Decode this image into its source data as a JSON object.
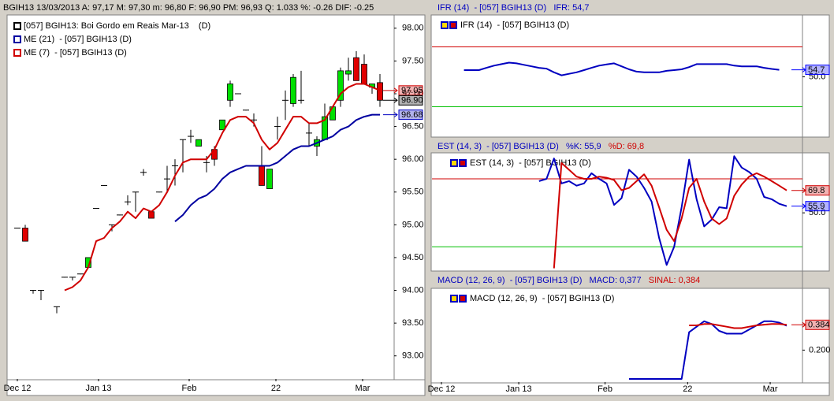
{
  "chart_data": [
    {
      "type": "candlestick",
      "title": "BGIH13   13/03/2013  A: 97,17   M: 97,30   m: 96,80   F: 96,90   PM: 96,93   Q: 1.033   %: -0.26  DIF: -0.25",
      "legend": [
        {
          "name": "[057] BGIH13: Boi Gordo em Reais Mar-13    (D)",
          "color": "#000000"
        },
        {
          "name": "ME (21)  - [057] BGIH13 (D)",
          "color": "#0000a0"
        },
        {
          "name": "ME (7)  - [057] BGIH13 (D)",
          "color": "#d00000"
        }
      ],
      "up_color": "#00e000",
      "down_color": "#e00000",
      "open": [
        94.95,
        94.95,
        94.0,
        94.0,
        null,
        93.75,
        94.2,
        94.2,
        94.25,
        94.35,
        95.25,
        95.6,
        95.0,
        95.15,
        95.35,
        95.5,
        95.8,
        95.2,
        95.5,
        95.7,
        95.9,
        96.3,
        96.35,
        96.2,
        95.95,
        96.15,
        96.45,
        96.9,
        97.0,
        96.75,
        96.6,
        95.9,
        95.55,
        96.5,
        96.9,
        96.85,
        96.9,
        96.4,
        96.2,
        96.3,
        96.6,
        96.9,
        97.3,
        97.55,
        97.45,
        97.1,
        97.17
      ],
      "high": [
        94.95,
        95.0,
        94.0,
        94.0,
        null,
        93.75,
        94.2,
        94.2,
        94.25,
        94.5,
        95.25,
        95.6,
        95.0,
        95.15,
        95.45,
        95.5,
        95.85,
        95.2,
        95.5,
        95.9,
        96.0,
        96.3,
        96.45,
        96.3,
        96.05,
        96.2,
        96.6,
        97.2,
        97.0,
        96.75,
        96.7,
        96.2,
        95.85,
        96.65,
        97.05,
        97.3,
        97.35,
        96.55,
        96.35,
        96.85,
        96.8,
        97.4,
        97.55,
        97.65,
        97.6,
        97.15,
        97.3
      ],
      "low": [
        94.95,
        94.75,
        93.95,
        93.85,
        null,
        93.65,
        94.2,
        94.15,
        94.25,
        94.35,
        95.25,
        95.6,
        94.9,
        95.15,
        95.3,
        95.2,
        95.75,
        95.1,
        95.5,
        95.5,
        95.6,
        95.8,
        96.25,
        96.2,
        95.8,
        95.9,
        96.45,
        96.8,
        97.0,
        96.75,
        96.5,
        95.6,
        95.55,
        96.3,
        96.6,
        96.8,
        96.85,
        96.2,
        96.05,
        96.3,
        96.6,
        96.8,
        97.2,
        97.2,
        97.15,
        97.0,
        96.8
      ],
      "close": [
        94.95,
        94.75,
        94.0,
        94.0,
        null,
        93.75,
        94.2,
        94.2,
        94.25,
        94.5,
        95.25,
        95.6,
        95.0,
        95.15,
        95.35,
        95.5,
        95.8,
        95.1,
        95.5,
        95.7,
        95.9,
        96.3,
        96.35,
        96.3,
        95.95,
        96.0,
        96.6,
        97.15,
        97.0,
        96.75,
        96.6,
        95.6,
        95.85,
        96.5,
        96.9,
        97.25,
        96.9,
        96.4,
        96.3,
        96.65,
        96.8,
        97.35,
        97.35,
        97.2,
        97.15,
        97.15,
        96.9
      ],
      "series": [
        {
          "color": "#0000a0",
          "values": [
            null,
            null,
            null,
            null,
            null,
            null,
            null,
            null,
            null,
            null,
            null,
            null,
            null,
            null,
            null,
            null,
            null,
            null,
            null,
            null,
            95.05,
            95.15,
            95.3,
            95.4,
            95.45,
            95.55,
            95.7,
            95.8,
            95.85,
            95.9,
            95.9,
            95.9,
            95.9,
            95.95,
            96.05,
            96.15,
            96.2,
            96.2,
            96.25,
            96.3,
            96.35,
            96.45,
            96.5,
            96.6,
            96.65,
            96.68,
            96.68
          ]
        },
        {
          "color": "#d00000",
          "values": [
            null,
            null,
            null,
            null,
            null,
            null,
            94.0,
            94.05,
            94.15,
            94.35,
            94.75,
            94.8,
            94.95,
            95.05,
            95.2,
            95.1,
            95.25,
            95.2,
            95.3,
            95.5,
            95.75,
            95.95,
            96.0,
            96.0,
            96.0,
            96.15,
            96.4,
            96.6,
            96.65,
            96.65,
            96.55,
            96.3,
            96.15,
            96.25,
            96.45,
            96.65,
            96.65,
            96.55,
            96.55,
            96.6,
            96.8,
            97.0,
            97.1,
            97.15,
            97.15,
            97.1,
            97.05
          ]
        }
      ],
      "tags": [
        {
          "value": 97.05,
          "label": "97.05",
          "color": "#d00000"
        },
        {
          "value": 96.9,
          "label": "96.90",
          "color": "#000000"
        },
        {
          "value": 96.68,
          "label": "96.68",
          "color": "#0000c0"
        }
      ],
      "xlim": [
        -1.2,
        47.8
      ],
      "ylim": [
        92.66,
        98.19
      ],
      "xticks": [
        {
          "value": 0,
          "label": "Dec 12"
        },
        {
          "value": 10.3,
          "label": "Jan 13"
        },
        {
          "value": 21.8,
          "label": "Feb"
        },
        {
          "value": 32.8,
          "label": "22"
        },
        {
          "value": 43.8,
          "label": "Mar"
        }
      ],
      "yticks": [
        {
          "value": 93,
          "label": "93.00"
        },
        {
          "value": 93.5,
          "label": "93.50"
        },
        {
          "value": 94,
          "label": "94.00"
        },
        {
          "value": 94.5,
          "label": "94.50"
        },
        {
          "value": 95,
          "label": "95.00"
        },
        {
          "value": 95.5,
          "label": "95.50"
        },
        {
          "value": 96,
          "label": "96.00"
        },
        {
          "value": 96.5,
          "label": "96.50"
        },
        {
          "value": 97,
          "label": "97.00"
        },
        {
          "value": 97.5,
          "label": "97.50"
        },
        {
          "value": 98,
          "label": "98.00"
        }
      ]
    },
    {
      "type": "line",
      "title_parts": [
        {
          "text": "IFR (14)  - [057] BGIH13 (D)   IFR: 54,7",
          "color": "#0000c0"
        }
      ],
      "legend": [
        {
          "name": "IFR (14)  - [057] BGIH13 (D)",
          "color": "#0000c0"
        }
      ],
      "series": [
        {
          "color": "#0000c0",
          "values": [
            null,
            null,
            null,
            54.5,
            54.5,
            54.5,
            56,
            57.5,
            58.5,
            59.5,
            59,
            58,
            57,
            56,
            55.5,
            53,
            51,
            52,
            53,
            54.5,
            56,
            57.5,
            58.3,
            59,
            57,
            55,
            53.5,
            53,
            53,
            53,
            54,
            54.5,
            55,
            56.5,
            58.5,
            58.5,
            58.5,
            58.5,
            58.5,
            57.5,
            57,
            57,
            57,
            56,
            55.3,
            54.7,
            null
          ]
        }
      ],
      "levels": [
        {
          "value": 70,
          "color": "#d00000"
        },
        {
          "value": 30,
          "color": "#00c000"
        }
      ],
      "tags": [
        {
          "value": 54.7,
          "label": "54.7",
          "color": "#0000ff"
        }
      ],
      "xlim": [
        -1.26,
        48.1
      ],
      "ylim": [
        10.8,
        90.8
      ],
      "yticks": [
        {
          "value": 50,
          "label": "50.0"
        }
      ]
    },
    {
      "type": "line",
      "title_parts": [
        {
          "text": "EST (14, 3)  - [057] BGIH13 (D)   %K: 55,9",
          "color": "#0000c0"
        },
        {
          "text": "   %D: 69,8",
          "color": "#d00000"
        }
      ],
      "legend": [
        {
          "name": "EST (14, 3)  - [057] BGIH13 (D)",
          "color": "#0000c0"
        }
      ],
      "series": [
        {
          "color": "#0000c0",
          "values": [
            null,
            null,
            null,
            null,
            null,
            null,
            null,
            null,
            null,
            null,
            null,
            null,
            null,
            78,
            80,
            98,
            76,
            78,
            74,
            76,
            85,
            80,
            76,
            57,
            63,
            88,
            82,
            72,
            60,
            28,
            4,
            20,
            55,
            97,
            62,
            38,
            44,
            55,
            54,
            100,
            90,
            86,
            80,
            64,
            62,
            58,
            55.9
          ]
        },
        {
          "color": "#d00000",
          "values": [
            null,
            null,
            null,
            null,
            null,
            null,
            null,
            null,
            null,
            null,
            null,
            null,
            null,
            null,
            null,
            1,
            94,
            88,
            82,
            80,
            80,
            82,
            81,
            79,
            70,
            72,
            78,
            84,
            74,
            55,
            35,
            25,
            45,
            72,
            80,
            60,
            45,
            40,
            45,
            65,
            75,
            82,
            85,
            82,
            78,
            74,
            69.8
          ]
        }
      ],
      "levels": [
        {
          "value": 80,
          "color": "#d00000"
        },
        {
          "value": 20,
          "color": "#00c000"
        }
      ],
      "tags": [
        {
          "value": 69.8,
          "label": "69.8",
          "color": "#d00000"
        },
        {
          "value": 55.9,
          "label": "55.9",
          "color": "#0000ff"
        }
      ],
      "xlim": [
        -1.26,
        48.1
      ],
      "ylim": [
        0,
        102.3
      ],
      "yticks": [
        {
          "value": 50,
          "label": "50.0"
        }
      ]
    },
    {
      "type": "line",
      "title_parts": [
        {
          "text": "MACD (12, 26, 9)  - [057] BGIH13 (D)   MACD: 0,377",
          "color": "#0000c0"
        },
        {
          "text": "   SINAL: 0,384",
          "color": "#d00000"
        }
      ],
      "legend": [
        {
          "name": "MACD (12, 26, 9)  - [057] BGIH13 (D)",
          "color": "#0000c0"
        }
      ],
      "series": [
        {
          "color": "#0000c0",
          "values": [
            null,
            null,
            null,
            null,
            null,
            null,
            null,
            null,
            null,
            null,
            null,
            null,
            null,
            null,
            null,
            null,
            null,
            null,
            null,
            null,
            null,
            null,
            null,
            null,
            null,
            -0.01,
            -0.01,
            -0.01,
            -0.01,
            -0.01,
            -0.01,
            -0.01,
            -0.01,
            0.33,
            0.37,
            0.41,
            0.39,
            0.34,
            0.32,
            0.32,
            0.32,
            0.35,
            0.38,
            0.41,
            0.41,
            0.4,
            0.377
          ]
        },
        {
          "color": "#d00000",
          "values": [
            null,
            null,
            null,
            null,
            null,
            null,
            null,
            null,
            null,
            null,
            null,
            null,
            null,
            null,
            null,
            null,
            null,
            null,
            null,
            null,
            null,
            null,
            null,
            null,
            null,
            null,
            null,
            null,
            null,
            null,
            null,
            null,
            null,
            0.38,
            0.38,
            0.39,
            0.39,
            0.38,
            0.37,
            0.36,
            0.36,
            0.37,
            0.38,
            0.385,
            0.39,
            0.39,
            0.384
          ]
        }
      ],
      "tags": [
        {
          "value": 0.384,
          "label": "0.384",
          "color": "#d00000"
        }
      ],
      "xlim": [
        -1.26,
        48.1
      ],
      "ylim": [
        -0.027,
        0.638
      ],
      "xticks": [
        {
          "value": 0,
          "label": "Dec 12"
        },
        {
          "value": 10.3,
          "label": "Jan 13"
        },
        {
          "value": 21.8,
          "label": "Feb"
        },
        {
          "value": 32.8,
          "label": "22"
        },
        {
          "value": 43.8,
          "label": "Mar"
        }
      ],
      "yticks": [
        {
          "value": 0.2,
          "label": "0.200"
        }
      ]
    }
  ]
}
